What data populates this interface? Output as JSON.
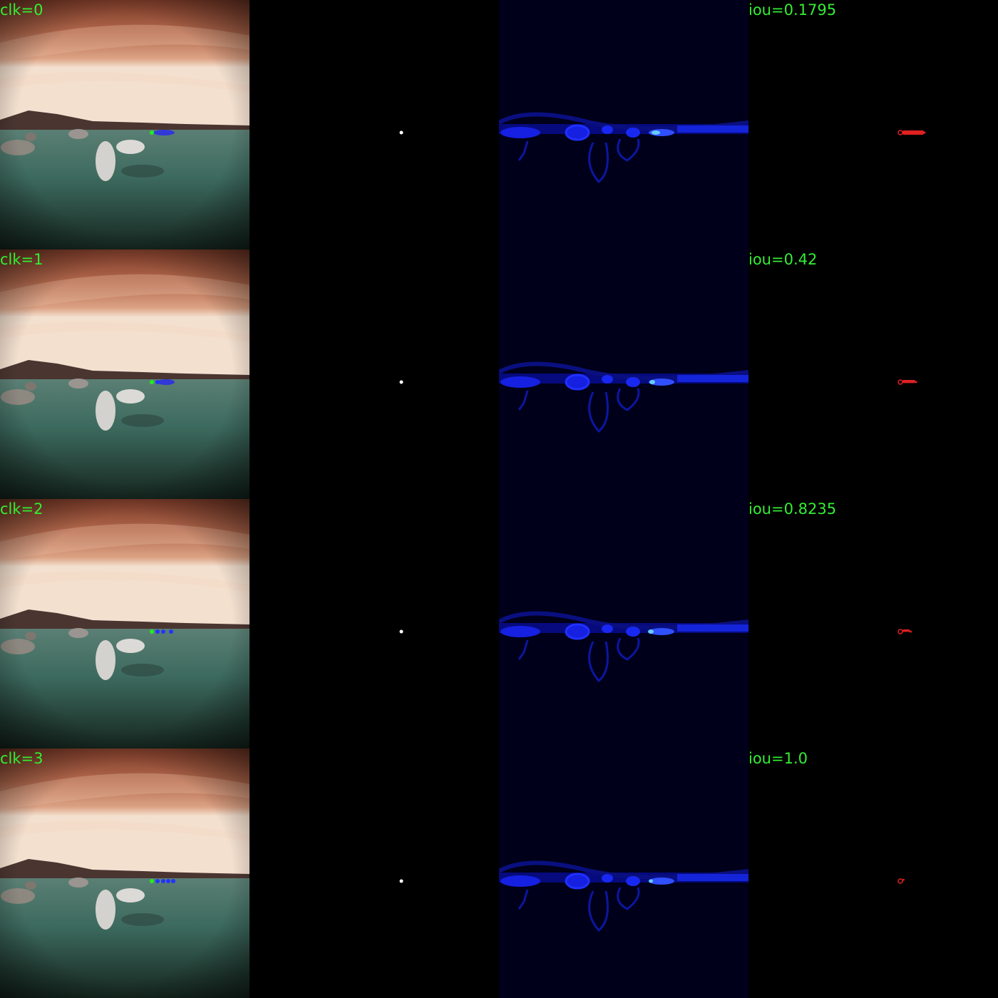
{
  "rows": [
    {
      "clk_label": "clk=0",
      "iou_label": "iou=0.1795",
      "colour": "#e02020",
      "level": 1.0
    },
    {
      "clk_label": "clk=1",
      "iou_label": "iou=0.42",
      "colour": "#e02020",
      "level": 0.6
    },
    {
      "clk_label": "clk=2",
      "iou_label": "iou=0.8235",
      "colour": "#e02020",
      "level": 0.35
    },
    {
      "clk_label": "clk=3",
      "iou_label": "iou=1.0",
      "colour": "#e02020",
      "level": 0.1
    }
  ]
}
